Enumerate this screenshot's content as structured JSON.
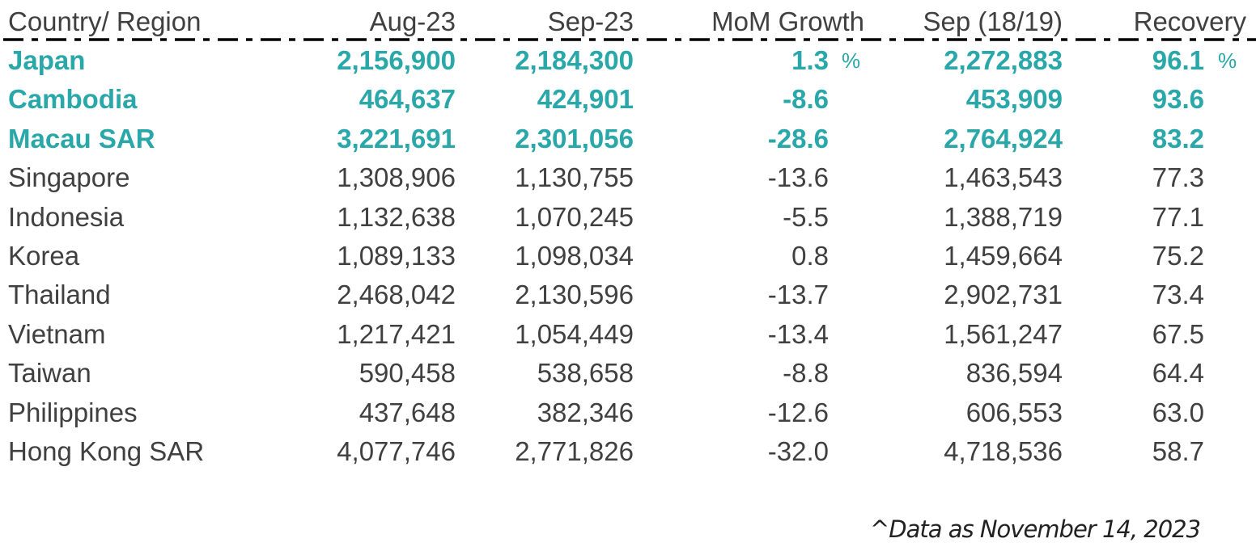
{
  "colors": {
    "highlight": "#2aa7a8",
    "text": "#404040",
    "rule": "#000000"
  },
  "chart_data": {
    "type": "table",
    "columns": [
      "Country/ Region",
      "Aug-23",
      "Sep-23",
      "MoM Growth",
      "Sep (18/19)",
      "Recovery"
    ],
    "units": {
      "mom_growth": "%",
      "recovery": "%"
    },
    "highlighted_rows": [
      "Japan",
      "Cambodia",
      "Macau SAR"
    ],
    "rows": [
      [
        "Japan",
        "2,156,900",
        "2,184,300",
        "1.3",
        "2,272,883",
        "96.1"
      ],
      [
        "Cambodia",
        "464,637",
        "424,901",
        "-8.6",
        "453,909",
        "93.6"
      ],
      [
        "Macau SAR",
        "3,221,691",
        "2,301,056",
        "-28.6",
        "2,764,924",
        "83.2"
      ],
      [
        "Singapore",
        "1,308,906",
        "1,130,755",
        "-13.6",
        "1,463,543",
        "77.3"
      ],
      [
        "Indonesia",
        "1,132,638",
        "1,070,245",
        "-5.5",
        "1,388,719",
        "77.1"
      ],
      [
        "Korea",
        "1,089,133",
        "1,098,034",
        "0.8",
        "1,459,664",
        "75.2"
      ],
      [
        "Thailand",
        "2,468,042",
        "2,130,596",
        "-13.7",
        "2,902,731",
        "73.4"
      ],
      [
        "Vietnam",
        "1,217,421",
        "1,054,449",
        "-13.4",
        "1,561,247",
        "67.5"
      ],
      [
        "Taiwan",
        "590,458",
        "538,658",
        "-8.8",
        "836,594",
        "64.4"
      ],
      [
        "Philippines",
        "437,648",
        "382,346",
        "-12.6",
        "606,553",
        "63.0"
      ],
      [
        "Hong Kong SAR",
        "4,077,746",
        "2,771,826",
        "-32.0",
        "4,718,536",
        "58.7"
      ]
    ],
    "percent_sign": "%",
    "footnote": "^Data as November 14, 2023"
  }
}
